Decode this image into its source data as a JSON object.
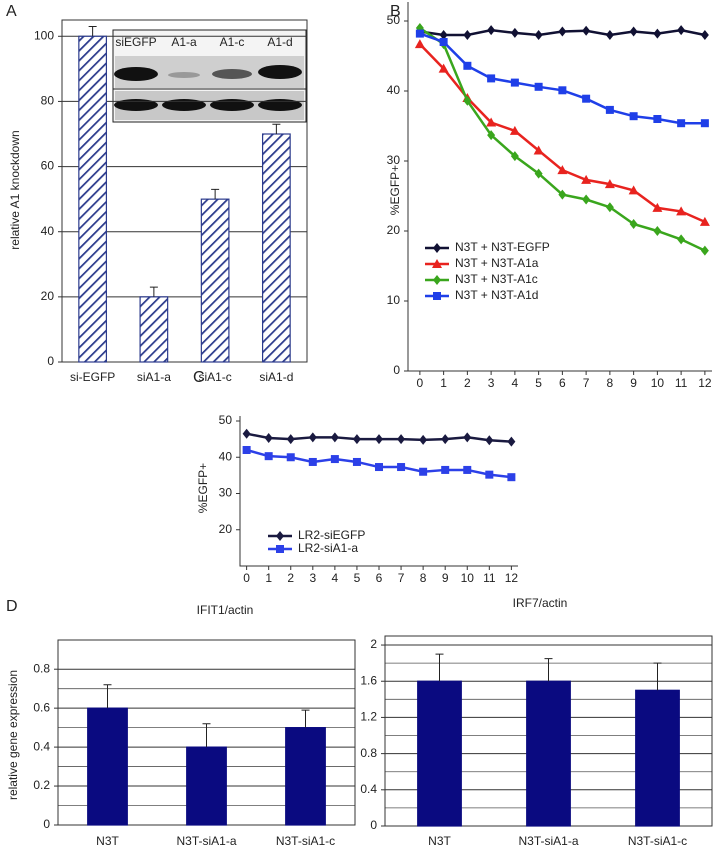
{
  "chart_data": [
    {
      "panel": "A",
      "type": "bar",
      "ylabel": "relative A1 knockdown",
      "categories": [
        "si-EGFP",
        "siA1-a",
        "siA1-c",
        "siA1-d"
      ],
      "values": [
        100,
        20,
        50,
        70
      ],
      "errors": [
        3,
        3,
        3,
        3
      ],
      "color": "#2b3a8c",
      "hatch": true,
      "ylim": [
        0,
        105
      ],
      "yticks": [
        0,
        20,
        40,
        60,
        80,
        100
      ],
      "grid": true,
      "inset_labels": [
        "siEGFP",
        "A1-a",
        "A1-c",
        "A1-d"
      ]
    },
    {
      "panel": "B",
      "type": "line",
      "ylabel": "%EGFP+",
      "x": [
        0,
        1,
        2,
        3,
        4,
        5,
        6,
        7,
        8,
        9,
        10,
        11,
        12
      ],
      "xlim": [
        -0.5,
        12.3
      ],
      "xticks": [
        0,
        1,
        2,
        3,
        4,
        5,
        6,
        7,
        8,
        9,
        10,
        11,
        12
      ],
      "ylim": [
        0,
        52
      ],
      "yticks": [
        0,
        10,
        20,
        30,
        40,
        50
      ],
      "grid": false,
      "legend": "lower left",
      "series": [
        {
          "name": "N3T + N3T-EGFP",
          "color": "#111133",
          "marker": "diamond",
          "values": [
            48.5,
            48,
            48,
            48.7,
            48.3,
            48,
            48.5,
            48.6,
            48,
            48.5,
            48.2,
            48.7,
            48
          ]
        },
        {
          "name": "N3T + N3T-A1a",
          "color": "#e8231f",
          "marker": "triangle",
          "values": [
            46.7,
            43.2,
            39,
            35.5,
            34.3,
            31.5,
            28.7,
            27.3,
            26.7,
            25.8,
            23.3,
            22.8,
            21.3
          ]
        },
        {
          "name": "N3T + N3T-A1c",
          "color": "#3aa61d",
          "marker": "diamond",
          "values": [
            49,
            46.7,
            38.6,
            33.7,
            30.7,
            28.2,
            25.2,
            24.5,
            23.4,
            21,
            20,
            18.8,
            17.2
          ]
        },
        {
          "name": "N3T + N3T-A1d",
          "color": "#1f3fe8",
          "marker": "square",
          "values": [
            48.2,
            47,
            43.6,
            41.8,
            41.2,
            40.6,
            40.1,
            38.9,
            37.3,
            36.4,
            36,
            35.4,
            35.4
          ]
        }
      ]
    },
    {
      "panel": "C",
      "type": "line",
      "ylabel": "%EGFP+",
      "x": [
        0,
        1,
        2,
        3,
        4,
        5,
        6,
        7,
        8,
        9,
        10,
        11,
        12
      ],
      "xlim": [
        -0.3,
        12.3
      ],
      "xticks": [
        0,
        1,
        2,
        3,
        4,
        5,
        6,
        7,
        8,
        9,
        10,
        11,
        12
      ],
      "ylim": [
        10,
        50
      ],
      "yticks": [
        20,
        30,
        40,
        50
      ],
      "grid": false,
      "legend": "lower left",
      "series": [
        {
          "name": "LR2-siEGFP",
          "color": "#1a1a40",
          "marker": "diamond",
          "values": [
            46.5,
            45.3,
            45,
            45.5,
            45.5,
            45,
            45,
            45,
            44.8,
            45,
            45.5,
            44.7,
            44.3
          ]
        },
        {
          "name": "LR2-siA1-a",
          "color": "#2c40e8",
          "marker": "square",
          "values": [
            42,
            40.3,
            40,
            38.7,
            39.5,
            38.7,
            37.3,
            37.3,
            36,
            36.5,
            36.5,
            35.2,
            34.5
          ]
        }
      ]
    },
    {
      "panel": "D",
      "type": "bar",
      "title": "IFIT1/actin",
      "ylabel": "relative gene expression",
      "categories": [
        "N3T",
        "N3T-siA1-a",
        "N3T-siA1-c"
      ],
      "values": [
        0.6,
        0.4,
        0.5
      ],
      "errors": [
        0.12,
        0.12,
        0.09
      ],
      "color": "#0a0a80",
      "hatch": false,
      "ylim": [
        0,
        0.95
      ],
      "yticks": [
        0,
        0.2,
        0.4,
        0.6,
        0.8
      ],
      "minor_yticks": [
        0.1,
        0.3,
        0.5,
        0.7
      ],
      "grid": true
    },
    {
      "type": "bar",
      "title": "IRF7/actin",
      "categories": [
        "N3T",
        "N3T-siA1-a",
        "N3T-siA1-c"
      ],
      "values": [
        1.6,
        1.6,
        1.5
      ],
      "errors": [
        0.3,
        0.25,
        0.3
      ],
      "color": "#0a0a80",
      "hatch": false,
      "ylim": [
        0,
        2.1
      ],
      "yticks": [
        0,
        0.4,
        0.8,
        1.2,
        1.6,
        2
      ],
      "minor_yticks": [
        0.2,
        0.6,
        1,
        1.4,
        1.8
      ],
      "grid": true
    }
  ]
}
